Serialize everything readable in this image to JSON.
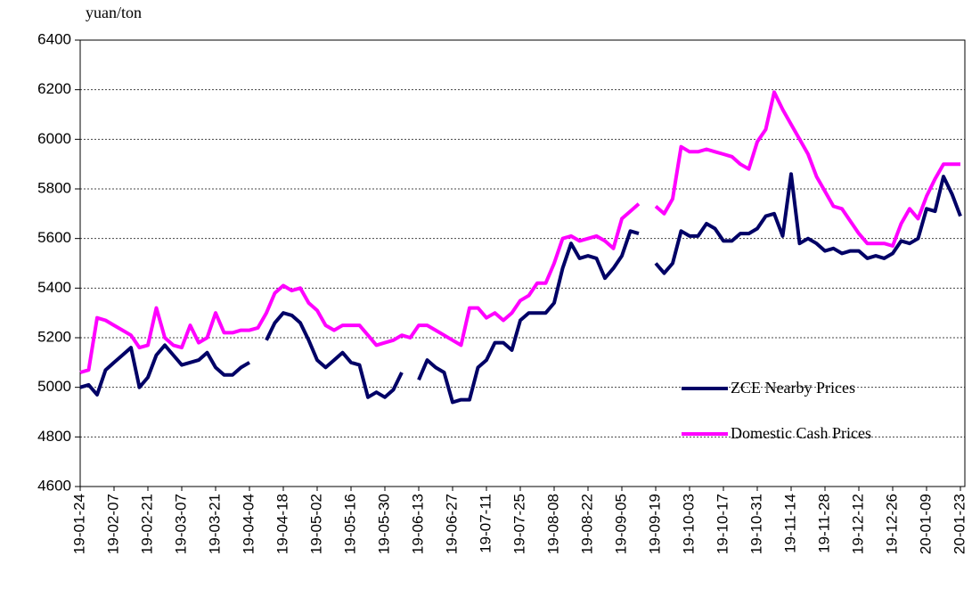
{
  "chart_data": {
    "type": "line",
    "y_unit_label": "yuan/ton",
    "categories": [
      "19-01-24",
      null,
      null,
      null,
      "19-02-07",
      null,
      null,
      null,
      "19-02-21",
      null,
      null,
      null,
      "19-03-07",
      null,
      null,
      null,
      "19-03-21",
      null,
      null,
      null,
      "19-04-04",
      null,
      null,
      null,
      "19-04-18",
      null,
      null,
      null,
      "19-05-02",
      null,
      null,
      null,
      "19-05-16",
      null,
      null,
      null,
      "19-05-30",
      null,
      null,
      null,
      "19-06-13",
      null,
      null,
      null,
      "19-06-27",
      null,
      null,
      null,
      "19-07-11",
      null,
      null,
      null,
      "19-07-25",
      null,
      null,
      null,
      "19-08-08",
      null,
      null,
      null,
      "19-08-22",
      null,
      null,
      null,
      "19-09-05",
      null,
      null,
      null,
      "19-09-19",
      null,
      null,
      null,
      "19-10-03",
      null,
      null,
      null,
      "19-10-17",
      null,
      null,
      null,
      "19-10-31",
      null,
      null,
      null,
      "19-11-14",
      null,
      null,
      null,
      "19-11-28",
      null,
      null,
      null,
      "19-12-12",
      null,
      null,
      null,
      "19-12-26",
      null,
      null,
      null,
      "20-01-09",
      null,
      null,
      null,
      "20-01-23"
    ],
    "series": [
      {
        "name": "ZCE Nearby Prices",
        "color": "#000066",
        "values": [
          5000,
          5010,
          4970,
          5070,
          5100,
          5130,
          5160,
          5000,
          5040,
          5130,
          5170,
          5130,
          5090,
          5100,
          5110,
          5140,
          5080,
          5050,
          5050,
          5080,
          5100,
          null,
          5190,
          5260,
          5300,
          5290,
          5260,
          5190,
          5110,
          5080,
          5110,
          5140,
          5100,
          5090,
          4960,
          4980,
          4960,
          4990,
          5060,
          null,
          5030,
          5110,
          5080,
          5060,
          4940,
          4950,
          4950,
          5080,
          5110,
          5180,
          5180,
          5150,
          5270,
          5300,
          5300,
          5300,
          5340,
          5480,
          5580,
          5520,
          5530,
          5520,
          5440,
          5480,
          5530,
          5630,
          5620,
          null,
          5500,
          5460,
          5500,
          5630,
          5610,
          5610,
          5660,
          5640,
          5590,
          5590,
          5620,
          5620,
          5640,
          5690,
          5700,
          5610,
          5860,
          5580,
          5600,
          5580,
          5550,
          5560,
          5540,
          5550,
          5550,
          5520,
          5530,
          5520,
          5540,
          5590,
          5580,
          5600,
          5720,
          5710,
          5850,
          5780,
          5690
        ]
      },
      {
        "name": "Domestic Cash Prices",
        "color": "#ff00ff",
        "values": [
          5060,
          5070,
          5280,
          5270,
          5250,
          5230,
          5210,
          5160,
          5170,
          5320,
          5200,
          5170,
          5160,
          5250,
          5180,
          5200,
          5300,
          5220,
          5220,
          5230,
          5230,
          5240,
          5300,
          5380,
          5410,
          5390,
          5400,
          5340,
          5310,
          5250,
          5230,
          5250,
          5250,
          5250,
          5210,
          5170,
          5180,
          5190,
          5210,
          5200,
          5250,
          5250,
          5230,
          5210,
          5190,
          5170,
          5320,
          5320,
          5280,
          5300,
          5270,
          5300,
          5350,
          5370,
          5420,
          5420,
          5500,
          5600,
          5610,
          5590,
          5600,
          5610,
          5590,
          5560,
          5680,
          5710,
          5740,
          null,
          5730,
          5700,
          5760,
          5970,
          5950,
          5950,
          5960,
          5950,
          5940,
          5930,
          5900,
          5880,
          5990,
          6040,
          6190,
          6120,
          6060,
          6000,
          5940,
          5850,
          5790,
          5730,
          5720,
          5670,
          5620,
          5580,
          5580,
          5580,
          5570,
          5660,
          5720,
          5680,
          5770,
          5840,
          5900,
          5900,
          5900
        ]
      }
    ],
    "ylim": [
      4600,
      6400
    ],
    "yticks": [
      4600,
      4800,
      5000,
      5200,
      5400,
      5600,
      5800,
      6000,
      6200,
      6400
    ],
    "grid": true,
    "legend": "right"
  }
}
